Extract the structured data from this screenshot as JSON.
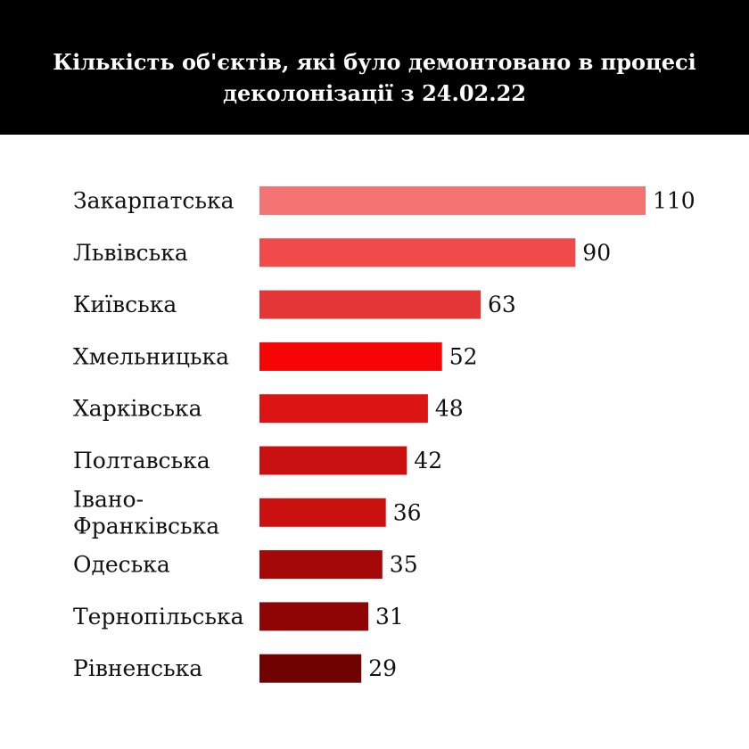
{
  "chart_data": {
    "type": "bar",
    "orientation": "horizontal",
    "title": "Кількість об'єктів, які було демонтовано в процесі деколонізації з 24.02.22",
    "categories": [
      "Закарпатська",
      "Львівська",
      "Київська",
      "Хмельницька",
      "Харківська",
      "Полтавська",
      "Івано-Франківська",
      "Одеська",
      "Тернопільська",
      "Рівненська"
    ],
    "category_lines": [
      [
        "Закарпатська"
      ],
      [
        "Львівська"
      ],
      [
        "Київська"
      ],
      [
        "Хмельницька"
      ],
      [
        "Харківська"
      ],
      [
        "Полтавська"
      ],
      [
        "Івано-",
        "Франківська"
      ],
      [
        "Одеська"
      ],
      [
        "Тернопільська"
      ],
      [
        "Рівненська"
      ]
    ],
    "values": [
      110,
      90,
      63,
      52,
      48,
      42,
      36,
      35,
      31,
      29
    ],
    "value_labels": [
      "110",
      "90",
      "63",
      "52",
      "48",
      "42",
      "36",
      "35",
      "31",
      "29"
    ],
    "bar_colors": [
      "#f47373",
      "#f04a4a",
      "#e43636",
      "#f50505",
      "#dc1414",
      "#c91010",
      "#cb1010",
      "#a50808",
      "#8f0404",
      "#700202"
    ],
    "xlim": [
      0,
      110
    ],
    "grid": false,
    "legend": "none",
    "header_background": "#000000",
    "header_text_color": "#ffffff"
  }
}
